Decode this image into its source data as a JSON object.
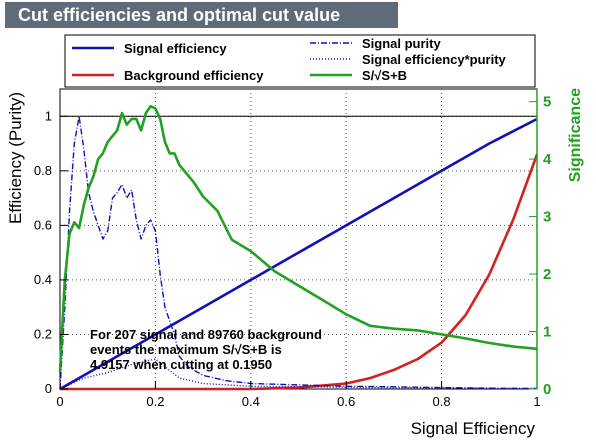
{
  "title": "Cut efficiencies and optimal cut value",
  "chart_data": {
    "type": "line",
    "xlabel": "Signal Efficiency",
    "ylabel": "Efficiency (Purity)",
    "y2label": "Significance",
    "xlim": [
      0,
      1
    ],
    "ylim": [
      0,
      1.1
    ],
    "y2lim": [
      0,
      5.22
    ],
    "xticks": [
      "0",
      "0.2",
      "0.4",
      "0.6",
      "0.8",
      "1"
    ],
    "yticks": [
      "0",
      "0.2",
      "0.4",
      "0.6",
      "0.8",
      "1"
    ],
    "y2ticks": [
      "0",
      "1",
      "2",
      "3",
      "4",
      "5"
    ],
    "legend_position": "top",
    "colors": {
      "signal": "#1010b8",
      "background": "#d42020",
      "significance": "#22a022",
      "purity": "#1010b8"
    },
    "series": [
      {
        "name": "Signal efficiency",
        "axis": "left",
        "style": "solid",
        "x": [
          0,
          0.1,
          0.2,
          0.3,
          0.4,
          0.5,
          0.6,
          0.7,
          0.8,
          0.9,
          1.0
        ],
        "y": [
          0,
          0.1,
          0.2,
          0.3,
          0.4,
          0.5,
          0.6,
          0.7,
          0.8,
          0.9,
          0.99
        ]
      },
      {
        "name": "Background efficiency",
        "axis": "left",
        "style": "solid",
        "x": [
          0,
          0.2,
          0.4,
          0.5,
          0.6,
          0.65,
          0.7,
          0.75,
          0.8,
          0.85,
          0.9,
          0.95,
          1.0
        ],
        "y": [
          0,
          0.0,
          0.0,
          0.005,
          0.02,
          0.04,
          0.07,
          0.11,
          0.17,
          0.27,
          0.42,
          0.62,
          0.86
        ]
      },
      {
        "name": "Signal purity",
        "axis": "left",
        "style": "dashdot",
        "x": [
          0.0,
          0.01,
          0.02,
          0.03,
          0.04,
          0.05,
          0.06,
          0.07,
          0.08,
          0.09,
          0.1,
          0.11,
          0.12,
          0.13,
          0.14,
          0.15,
          0.16,
          0.17,
          0.18,
          0.19,
          0.2,
          0.21,
          0.22,
          0.23,
          0.24,
          0.25,
          0.27,
          0.3,
          0.35,
          0.4,
          0.5,
          0.6,
          0.7,
          0.8,
          0.9,
          1.0
        ],
        "y": [
          0.0,
          0.3,
          0.65,
          0.9,
          1.0,
          0.88,
          0.72,
          0.65,
          0.6,
          0.55,
          0.58,
          0.7,
          0.72,
          0.75,
          0.7,
          0.73,
          0.62,
          0.55,
          0.6,
          0.62,
          0.58,
          0.42,
          0.3,
          0.25,
          0.2,
          0.12,
          0.08,
          0.05,
          0.03,
          0.02,
          0.015,
          0.01,
          0.008,
          0.005,
          0.003,
          0.002
        ]
      },
      {
        "name": "Signal efficiency*purity",
        "axis": "left",
        "style": "dotted",
        "x": [
          0.0,
          0.05,
          0.1,
          0.15,
          0.2,
          0.25,
          0.3,
          0.35,
          0.4,
          0.5,
          0.6,
          0.8,
          1.0
        ],
        "y": [
          0.0,
          0.04,
          0.06,
          0.09,
          0.11,
          0.04,
          0.02,
          0.015,
          0.01,
          0.008,
          0.006,
          0.004,
          0.002
        ]
      },
      {
        "name": "S/√S+B",
        "axis": "right",
        "style": "solid",
        "x": [
          0.0,
          0.01,
          0.02,
          0.03,
          0.04,
          0.05,
          0.06,
          0.07,
          0.08,
          0.09,
          0.1,
          0.11,
          0.12,
          0.13,
          0.14,
          0.15,
          0.16,
          0.17,
          0.18,
          0.19,
          0.2,
          0.21,
          0.22,
          0.23,
          0.24,
          0.25,
          0.26,
          0.28,
          0.3,
          0.33,
          0.36,
          0.4,
          0.45,
          0.5,
          0.55,
          0.6,
          0.65,
          0.7,
          0.75,
          0.8,
          0.85,
          0.9,
          0.95,
          1.0
        ],
        "y": [
          0.3,
          1.9,
          2.7,
          2.9,
          2.8,
          3.2,
          3.5,
          3.7,
          4.0,
          4.1,
          4.3,
          4.4,
          4.5,
          4.8,
          4.6,
          4.7,
          4.7,
          4.5,
          4.8,
          4.92,
          4.88,
          4.7,
          4.3,
          4.1,
          4.1,
          3.9,
          3.8,
          3.6,
          3.35,
          3.1,
          2.6,
          2.4,
          2.05,
          1.8,
          1.55,
          1.3,
          1.1,
          1.05,
          1.02,
          0.95,
          0.88,
          0.8,
          0.74,
          0.7
        ]
      }
    ],
    "annotation": [
      "For 207 signal and 89760 background",
      "events the maximum S/√S+B is",
      "4.9157 when cutting at 0.1950"
    ]
  }
}
